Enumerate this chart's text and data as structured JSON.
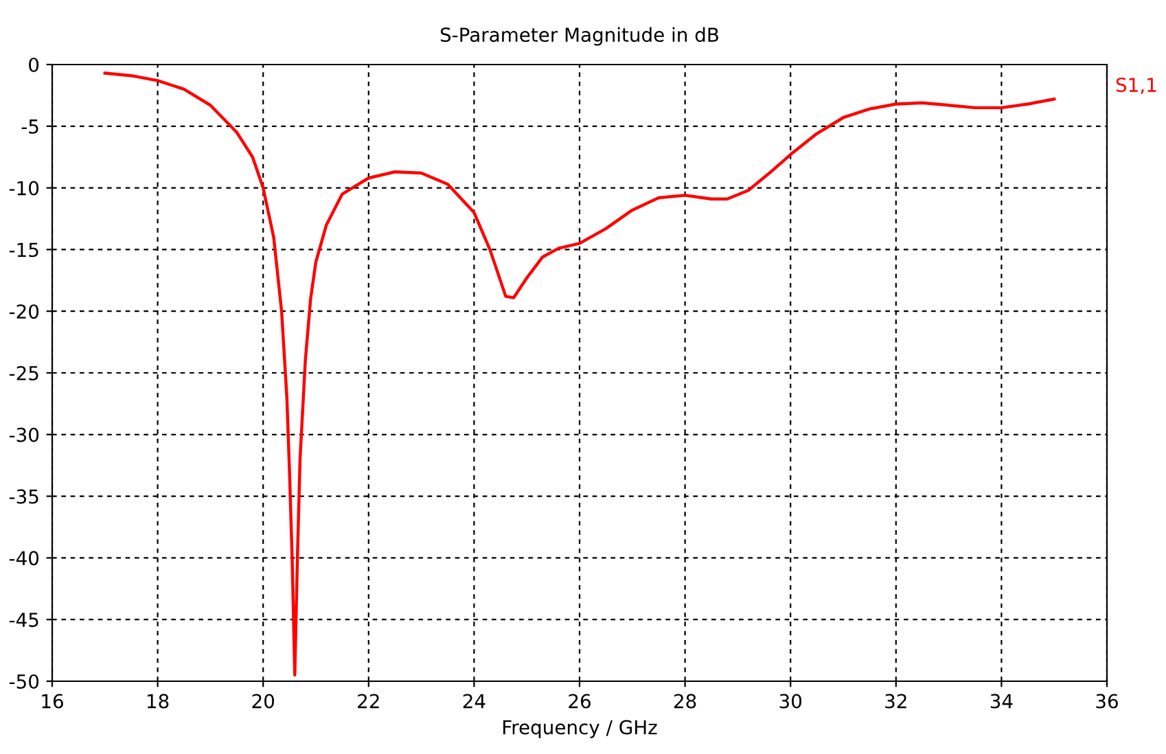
{
  "chart_data": {
    "type": "line",
    "title": "S-Parameter Magnitude in dB",
    "xlabel": "Frequency / GHz",
    "xlim": [
      16,
      36
    ],
    "xticks": [
      16,
      18,
      20,
      22,
      24,
      26,
      28,
      30,
      32,
      34,
      36
    ],
    "ylim": [
      -50,
      0
    ],
    "yticks": [
      -50,
      -45,
      -40,
      -35,
      -30,
      -25,
      -20,
      -15,
      -10,
      -5,
      0
    ],
    "grid": true,
    "legend": "top right",
    "marker": "none",
    "line_style": "solid",
    "series": [
      {
        "name": "S1,1",
        "color": "#ff0000",
        "x": [
          17.0,
          17.5,
          18.0,
          18.5,
          19.0,
          19.5,
          19.8,
          20.0,
          20.2,
          20.35,
          20.45,
          20.5,
          20.55,
          20.6,
          20.65,
          20.7,
          20.8,
          20.9,
          21.0,
          21.2,
          21.5,
          22.0,
          22.5,
          23.0,
          23.5,
          24.0,
          24.3,
          24.6,
          24.75,
          25.0,
          25.3,
          25.6,
          26.0,
          26.5,
          27.0,
          27.5,
          28.0,
          28.5,
          28.8,
          29.2,
          29.6,
          30.0,
          30.5,
          31.0,
          31.5,
          32.0,
          32.5,
          33.0,
          33.5,
          34.0,
          34.5,
          35.0
        ],
        "values": [
          -0.7,
          -0.9,
          -1.3,
          -2.0,
          -3.3,
          -5.5,
          -7.5,
          -10,
          -14,
          -20,
          -27,
          -33,
          -40,
          -49.5,
          -40,
          -32,
          -24,
          -19,
          -16,
          -13,
          -10.5,
          -9.2,
          -8.7,
          -8.8,
          -9.7,
          -12,
          -15,
          -18.8,
          -18.9,
          -17.3,
          -15.6,
          -14.9,
          -14.5,
          -13.3,
          -11.8,
          -10.8,
          -10.6,
          -10.9,
          -10.9,
          -10.2,
          -8.8,
          -7.3,
          -5.6,
          -4.3,
          -3.6,
          -3.2,
          -3.1,
          -3.3,
          -3.5,
          -3.5,
          -3.2,
          -2.8
        ]
      }
    ]
  }
}
